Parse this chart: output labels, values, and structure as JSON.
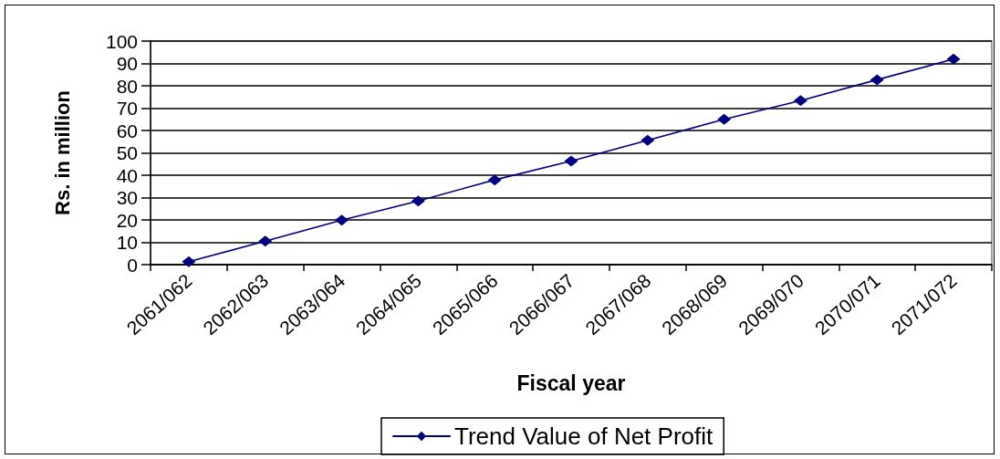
{
  "chart_data": {
    "type": "line",
    "xlabel": "Fiscal year",
    "ylabel": "Rs. in million",
    "categories": [
      "2061/062",
      "2062/063",
      "2063/064",
      "2064/065",
      "2065/066",
      "2066/067",
      "2067/068",
      "2068/069",
      "2069/070",
      "2070/071",
      "2071/072"
    ],
    "series": [
      {
        "name": "Trend Value of Net Profit",
        "color": "#000080",
        "values": [
          1.3,
          10.5,
          19.9,
          28.5,
          37.9,
          46.3,
          55.6,
          65.0,
          73.4,
          82.7,
          91.9
        ]
      }
    ],
    "ylim": [
      0,
      100
    ],
    "yticks": [
      0,
      10,
      20,
      30,
      40,
      50,
      60,
      70,
      80,
      90,
      100
    ],
    "grid": "y",
    "legend": "bottom",
    "marker": "diamond",
    "line_style": "solid"
  }
}
